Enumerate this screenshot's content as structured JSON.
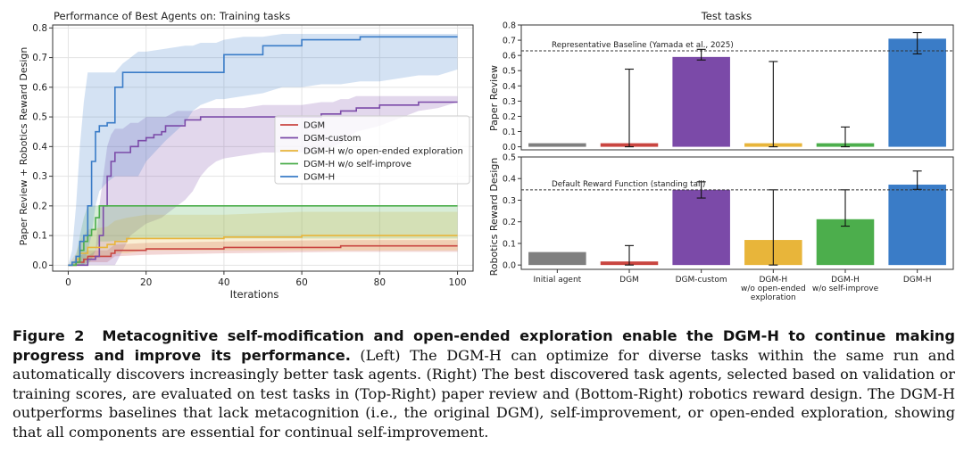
{
  "chart_data": [
    {
      "type": "line",
      "title": "Performance of Best Agents on:",
      "subtitle": "Training tasks",
      "xlabel": "Iterations",
      "ylabel": "Paper Review + Robotics Reward Design",
      "xlim": [
        -4,
        104
      ],
      "ylim": [
        -0.02,
        0.81
      ],
      "xticks": [
        0,
        20,
        40,
        60,
        80,
        100
      ],
      "yticks": [
        0.0,
        0.1,
        0.2,
        0.3,
        0.4,
        0.5,
        0.6,
        0.7,
        0.8
      ],
      "grid": true,
      "legend_position": "center-right",
      "series": [
        {
          "name": "DGM",
          "color": "#c94540",
          "x": [
            0,
            1,
            2,
            4,
            5,
            10,
            11,
            12,
            20,
            40,
            70,
            100
          ],
          "y": [
            0,
            0,
            0.01,
            0.02,
            0.03,
            0.03,
            0.04,
            0.05,
            0.055,
            0.06,
            0.065,
            0.065
          ],
          "lower": [
            0,
            0,
            0,
            0,
            0.01,
            0.01,
            0.02,
            0.03,
            0.035,
            0.04,
            0.045,
            0.045
          ],
          "upper": [
            0,
            0,
            0.02,
            0.04,
            0.05,
            0.05,
            0.06,
            0.07,
            0.075,
            0.08,
            0.085,
            0.085
          ]
        },
        {
          "name": "DGM-custom",
          "color": "#7b4aa8",
          "x": [
            0,
            3,
            5,
            7,
            8,
            9,
            10,
            11,
            12,
            14,
            16,
            18,
            20,
            22,
            24,
            25,
            28,
            30,
            32,
            34,
            36,
            38,
            40,
            45,
            50,
            60,
            65,
            68,
            70,
            72,
            74,
            80,
            90,
            95,
            100
          ],
          "y": [
            0,
            0,
            0.02,
            0.03,
            0.1,
            0.2,
            0.3,
            0.35,
            0.38,
            0.38,
            0.4,
            0.42,
            0.43,
            0.44,
            0.45,
            0.47,
            0.47,
            0.49,
            0.49,
            0.5,
            0.5,
            0.5,
            0.5,
            0.5,
            0.5,
            0.5,
            0.51,
            0.51,
            0.52,
            0.52,
            0.53,
            0.54,
            0.55,
            0.55,
            0.55
          ],
          "lower": [
            0,
            0,
            0,
            0,
            0,
            0,
            0,
            0,
            0,
            0.05,
            0.1,
            0.12,
            0.14,
            0.15,
            0.16,
            0.17,
            0.2,
            0.22,
            0.25,
            0.3,
            0.33,
            0.35,
            0.36,
            0.37,
            0.38,
            0.38,
            0.39,
            0.4,
            0.41,
            0.43,
            0.45,
            0.47,
            0.52,
            0.53,
            0.55
          ],
          "upper": [
            0,
            0,
            0.03,
            0.05,
            0.2,
            0.3,
            0.4,
            0.44,
            0.46,
            0.46,
            0.48,
            0.48,
            0.5,
            0.5,
            0.5,
            0.5,
            0.52,
            0.52,
            0.52,
            0.53,
            0.53,
            0.53,
            0.53,
            0.53,
            0.54,
            0.54,
            0.55,
            0.55,
            0.56,
            0.56,
            0.57,
            0.57,
            0.57,
            0.57,
            0.57
          ]
        },
        {
          "name": "DGM-H w/o open-ended exploration",
          "color": "#e8b53a",
          "x": [
            0,
            2,
            3,
            5,
            10,
            12,
            15,
            20,
            40,
            60,
            80,
            100
          ],
          "y": [
            0,
            0.02,
            0.04,
            0.06,
            0.07,
            0.08,
            0.09,
            0.09,
            0.095,
            0.1,
            0.1,
            0.1
          ],
          "lower": [
            0,
            0,
            0,
            0.02,
            0.03,
            0.04,
            0.04,
            0.05,
            0.05,
            0.05,
            0.05,
            0.05
          ],
          "upper": [
            0,
            0.04,
            0.08,
            0.12,
            0.13,
            0.15,
            0.16,
            0.17,
            0.17,
            0.18,
            0.18,
            0.18
          ]
        },
        {
          "name": "DGM-H w/o self-improve",
          "color": "#4cae4c",
          "x": [
            0,
            1,
            2,
            3,
            4,
            5,
            6,
            7,
            8,
            10,
            20,
            40,
            60,
            80,
            100
          ],
          "y": [
            0,
            0,
            0.01,
            0.05,
            0.08,
            0.1,
            0.12,
            0.16,
            0.2,
            0.2,
            0.2,
            0.2,
            0.2,
            0.2,
            0.2
          ],
          "lower": [
            0,
            0,
            0,
            0,
            0,
            0,
            0.02,
            0.05,
            0.08,
            0.08,
            0.09,
            0.09,
            0.09,
            0.09,
            0.09
          ],
          "upper": [
            0,
            0,
            0.03,
            0.1,
            0.16,
            0.2,
            0.2,
            0.2,
            0.2,
            0.2,
            0.2,
            0.2,
            0.2,
            0.2,
            0.2
          ]
        },
        {
          "name": "DGM-H",
          "color": "#3a7cc7",
          "x": [
            0,
            1,
            2,
            3,
            4,
            5,
            6,
            7,
            8,
            10,
            12,
            14,
            16,
            18,
            20,
            25,
            30,
            32,
            34,
            36,
            38,
            40,
            45,
            50,
            55,
            60,
            65,
            70,
            75,
            80,
            85,
            90,
            95,
            100
          ],
          "y": [
            0,
            0.01,
            0.03,
            0.08,
            0.1,
            0.2,
            0.35,
            0.45,
            0.47,
            0.48,
            0.6,
            0.65,
            0.65,
            0.65,
            0.65,
            0.65,
            0.65,
            0.65,
            0.65,
            0.65,
            0.65,
            0.71,
            0.71,
            0.74,
            0.74,
            0.76,
            0.76,
            0.76,
            0.77,
            0.77,
            0.77,
            0.77,
            0.77,
            0.77
          ],
          "lower": [
            0,
            0,
            0,
            0,
            0,
            0.05,
            0.1,
            0.2,
            0.25,
            0.28,
            0.3,
            0.3,
            0.3,
            0.3,
            0.35,
            0.42,
            0.48,
            0.52,
            0.54,
            0.55,
            0.56,
            0.56,
            0.57,
            0.58,
            0.6,
            0.6,
            0.61,
            0.61,
            0.62,
            0.62,
            0.63,
            0.64,
            0.64,
            0.66
          ],
          "upper": [
            0,
            0.05,
            0.2,
            0.4,
            0.55,
            0.65,
            0.65,
            0.65,
            0.65,
            0.65,
            0.65,
            0.68,
            0.7,
            0.72,
            0.72,
            0.73,
            0.74,
            0.74,
            0.75,
            0.75,
            0.75,
            0.76,
            0.77,
            0.77,
            0.78,
            0.78,
            0.78,
            0.78,
            0.78,
            0.78,
            0.78,
            0.78,
            0.78,
            0.78
          ]
        }
      ]
    },
    {
      "type": "bar",
      "title": "Test tasks",
      "ylabel": "Paper Review",
      "ylim": [
        -0.02,
        0.8
      ],
      "yticks": [
        0.0,
        0.1,
        0.2,
        0.3,
        0.4,
        0.5,
        0.6,
        0.7,
        0.8
      ],
      "categories": [
        "Initial agent",
        "DGM",
        "DGM-custom",
        "DGM-H w/o open-ended exploration",
        "DGM-H w/o self-improve",
        "DGM-H"
      ],
      "values": [
        0.0,
        0.0,
        0.59,
        0.0,
        0.0,
        0.71
      ],
      "err_low": [
        null,
        0.0,
        0.57,
        0.0,
        0.0,
        0.61
      ],
      "err_high": [
        null,
        0.51,
        0.64,
        0.56,
        0.13,
        0.75
      ],
      "colors": [
        "#7f7f7f",
        "#c94540",
        "#7b4aa8",
        "#e8b53a",
        "#4cae4c",
        "#3a7cc7"
      ],
      "baseline": {
        "value": 0.63,
        "label": "Representative Baseline (Yamada et al., 2025)"
      }
    },
    {
      "type": "bar",
      "ylabel": "Robotics Reward Design",
      "ylim": [
        -0.02,
        0.5
      ],
      "yticks": [
        0.0,
        0.1,
        0.2,
        0.3,
        0.4,
        0.5
      ],
      "categories": [
        "Initial agent",
        "DGM",
        "DGM-custom",
        "DGM-H w/o open-ended exploration",
        "DGM-H w/o self-improve",
        "DGM-H"
      ],
      "category_labels": [
        [
          "Initial agent"
        ],
        [
          "DGM"
        ],
        [
          "DGM-custom"
        ],
        [
          "DGM-H",
          "w/o open-ended",
          "exploration"
        ],
        [
          "DGM-H",
          "w/o self-improve"
        ],
        [
          "DGM-H"
        ]
      ],
      "values": [
        0.06,
        0.0,
        0.348,
        0.116,
        0.212,
        0.372
      ],
      "err_low": [
        null,
        0.0,
        0.31,
        0.0,
        0.18,
        0.35
      ],
      "err_high": [
        null,
        0.09,
        0.385,
        0.348,
        0.348,
        0.435
      ],
      "colors": [
        "#7f7f7f",
        "#c94540",
        "#7b4aa8",
        "#e8b53a",
        "#4cae4c",
        "#3a7cc7"
      ],
      "baseline": {
        "value": 0.348,
        "label": "Default Reward Function (standing tall)"
      }
    }
  ],
  "caption": {
    "label": "Figure 2",
    "title": "Metacognitive self-modification and open-ended exploration enable the DGM-H to continue making progress and improve its performance.",
    "body": "(Left) The DGM-H can optimize for diverse tasks within the same run and automatically discovers increasingly better task agents. (Right) The best discovered task agents, selected based on validation or training scores, are evaluated on test tasks in (Top-Right) paper review and (Bottom-Right) robotics reward design. The DGM-H outperforms baselines that lack metacognition (i.e., the original DGM), self-improvement, or open-ended exploration, showing that all components are essential for continual self-improvement."
  }
}
